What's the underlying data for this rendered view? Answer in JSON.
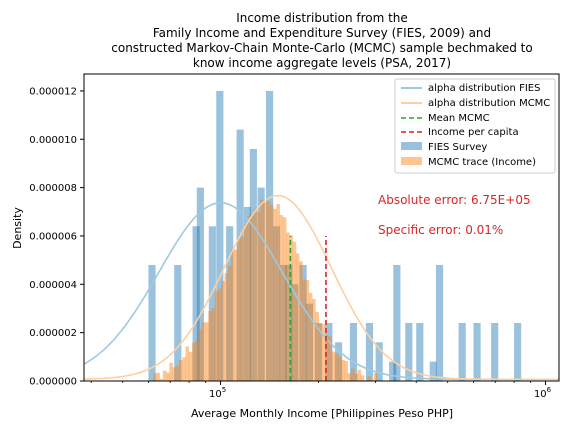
{
  "chart_data": {
    "type": "histogram",
    "title_lines": [
      "Income distribution from the",
      "Family Income and Expenditure Survey (FIES, 2009) and",
      "constructed Markov-Chain Monte-Carlo (MCMC) sample bechmaked to",
      "know income aggregate levels (PSA, 2017)"
    ],
    "xlabel": "Average Monthly Income [Philippines Peso PHP]",
    "ylabel": "Density",
    "xscale": "log",
    "xlim": [
      38000,
      1100000
    ],
    "ylim": [
      0,
      1.27e-05
    ],
    "x_ticks": [
      {
        "value": 100000,
        "base": "10",
        "exp": "5"
      },
      {
        "value": 1000000,
        "base": "10",
        "exp": "6"
      }
    ],
    "y_ticks": [
      "0.000000",
      "0.000002",
      "0.000004",
      "0.000006",
      "0.000008",
      "0.000010",
      "0.000012"
    ],
    "y_tick_values": [
      0,
      2e-06,
      4e-06,
      6e-06,
      8e-06,
      1e-05,
      1.2e-05
    ],
    "legend_position": "upper right",
    "legend": [
      {
        "label": "alpha distribution FIES",
        "kind": "line",
        "color": "#9ecae1"
      },
      {
        "label": "alpha distribution MCMC",
        "kind": "line",
        "color": "#fdd0a2"
      },
      {
        "label": "Mean MCMC",
        "kind": "dashed",
        "color": "#2ca02c"
      },
      {
        "label": "Income per capita",
        "kind": "dashed",
        "color": "#d62728"
      },
      {
        "label": "FIES Survey",
        "kind": "patch",
        "color": "#99c0dc"
      },
      {
        "label": "MCMC trace (Income)",
        "kind": "patch",
        "color": "#ffc48f"
      }
    ],
    "annotations": [
      {
        "text": "Absolute error: 6.75E+05",
        "color": "#d62728"
      },
      {
        "text": "Specific error: 0.01%",
        "color": "#d62728"
      }
    ],
    "fies_hist": {
      "color": "#1f77b4",
      "bins": [
        [
          60000,
          4.8e-06
        ],
        [
          66000,
          0.0
        ],
        [
          72000,
          4.8e-06
        ],
        [
          82000,
          6.4e-06
        ],
        [
          84500,
          8e-06
        ],
        [
          92000,
          6.4e-06
        ],
        [
          97000,
          1.2e-05
        ],
        [
          104000,
          6.4e-06
        ],
        [
          112000,
          1.04e-05
        ],
        [
          118000,
          7.2e-06
        ],
        [
          123000,
          9.6e-06
        ],
        [
          130000,
          8e-06
        ],
        [
          138000,
          1.2e-05
        ],
        [
          145000,
          6.4e-06
        ],
        [
          152000,
          4.8e-06
        ],
        [
          158000,
          4.8e-06
        ],
        [
          165000,
          4e-06
        ],
        [
          175000,
          4.8e-06
        ],
        [
          183000,
          3.2e-06
        ],
        [
          195000,
          2.4e-06
        ],
        [
          210000,
          2.4e-06
        ],
        [
          225000,
          1.6e-06
        ],
        [
          250000,
          2.4e-06
        ],
        [
          280000,
          2.4e-06
        ],
        [
          300000,
          1.6e-06
        ],
        [
          330000,
          8e-07
        ],
        [
          340000,
          4.8e-06
        ],
        [
          370000,
          2.4e-06
        ],
        [
          400000,
          2.4e-06
        ],
        [
          440000,
          8e-07
        ],
        [
          460000,
          4.8e-06
        ],
        [
          540000,
          2.4e-06
        ],
        [
          600000,
          2.4e-06
        ],
        [
          680000,
          2.4e-06
        ],
        [
          800000,
          2.4e-06
        ]
      ],
      "bin_width_log": 0.022
    },
    "mcmc_hist": {
      "color": "#ff7f0e",
      "start": 62000,
      "end": 310000,
      "bins_count": 70,
      "peak": 140000,
      "peak_density": 7.4e-06,
      "shape": "lognormal"
    },
    "fies_fit": {
      "color": "#9ecae1",
      "peak_x": 100000,
      "peak_y": 7.3e-06,
      "sigma_log10": 0.19
    },
    "mcmc_fit": {
      "color": "#fdd0a2",
      "peak_x": 150000,
      "peak_y": 7.6e-06,
      "sigma_log10": 0.165
    },
    "mean_mcmc": {
      "x": 164000,
      "ymax": 6e-06,
      "color": "#2ca02c"
    },
    "income_per_capita": {
      "x": 211000,
      "ymax": 6e-06,
      "color": "#d62728"
    }
  }
}
